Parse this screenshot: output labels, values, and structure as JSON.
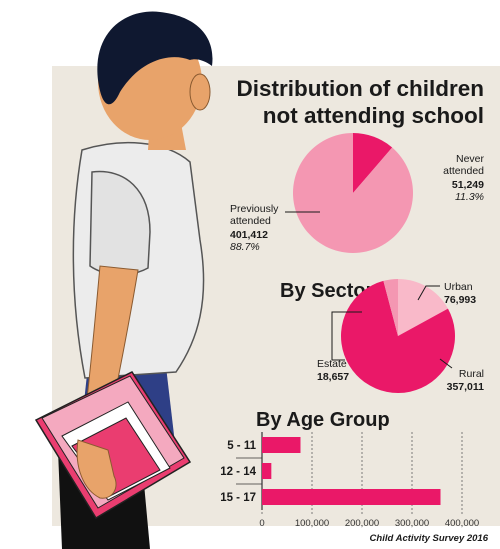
{
  "colors": {
    "panel": "#ede8df",
    "light_pink": "#f497b2",
    "pale_pink": "#f9b9c9",
    "magenta": "#ea1868",
    "grid": "#7a7a7a",
    "text": "#1a1a1a"
  },
  "title_line1": "Distribution of children",
  "title_line2": "not attending school",
  "source": "Child Activity  Survey 2016",
  "illustration": "student-holding-books",
  "chart_data": [
    {
      "type": "pie",
      "slices": [
        {
          "label_line1": "Never",
          "label_line2": "attended",
          "value": 51249,
          "value_text": "51,249",
          "percent_text": "11.3%",
          "color": "#ea1868"
        },
        {
          "label_line1": "Previously",
          "label_line2": "attended",
          "value": 401412,
          "value_text": "401,412",
          "percent_text": "88.7%",
          "color": "#f497b2"
        }
      ]
    },
    {
      "type": "pie",
      "title": "By Sector",
      "slices": [
        {
          "label": "Urban",
          "value": 76993,
          "value_text": "76,993",
          "color": "#f9b9c9"
        },
        {
          "label": "Rural",
          "value": 357011,
          "value_text": "357,011",
          "color": "#ea1868"
        },
        {
          "label": "Estate",
          "value": 18657,
          "value_text": "18,657",
          "color": "#f497b2"
        }
      ]
    },
    {
      "type": "bar",
      "orientation": "horizontal",
      "title": "By Age Group",
      "categories": [
        "5 - 11",
        "12 - 14",
        "15 - 17"
      ],
      "values": [
        76993,
        18657,
        357011
      ],
      "color": "#ea1868",
      "xlim": [
        0,
        400000
      ],
      "xticks": [
        "0",
        "100,000",
        "200,000",
        "300,000",
        "400,000"
      ],
      "grid": true
    }
  ]
}
